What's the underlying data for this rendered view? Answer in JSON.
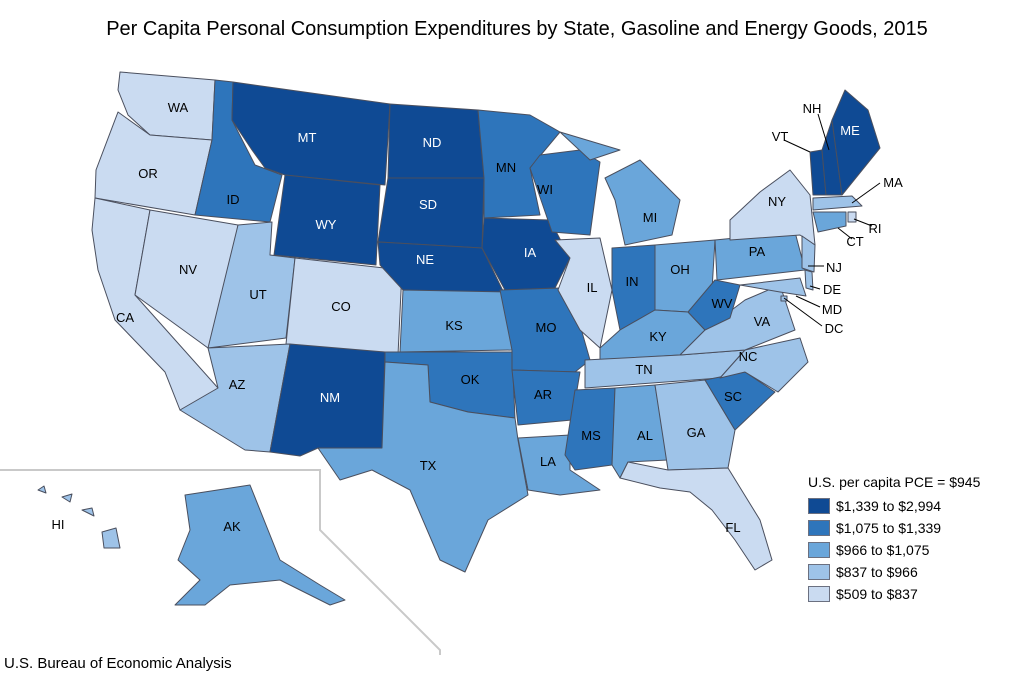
{
  "title": "Per Capita Personal Consumption Expenditures by State, Gasoline and Energy Goods, 2015",
  "source": "U.S. Bureau of Economic Analysis",
  "legend": {
    "title": "U.S. per capita PCE = $945",
    "items": [
      {
        "label": "$1,339 to $2,994",
        "color": "#0f4a94"
      },
      {
        "label": "$1,075 to $1,339",
        "color": "#2e75bb"
      },
      {
        "label": "$966 to $1,075",
        "color": "#6aa6da"
      },
      {
        "label": "$837 to $966",
        "color": "#9ec3e8"
      },
      {
        "label": "$509 to $837",
        "color": "#cadbf1"
      }
    ]
  },
  "states": [
    {
      "abbr": "WA",
      "bin": 4
    },
    {
      "abbr": "OR",
      "bin": 4
    },
    {
      "abbr": "CA",
      "bin": 4
    },
    {
      "abbr": "NV",
      "bin": 4
    },
    {
      "abbr": "ID",
      "bin": 1
    },
    {
      "abbr": "MT",
      "bin": 0
    },
    {
      "abbr": "WY",
      "bin": 0
    },
    {
      "abbr": "UT",
      "bin": 3
    },
    {
      "abbr": "CO",
      "bin": 4
    },
    {
      "abbr": "AZ",
      "bin": 3
    },
    {
      "abbr": "NM",
      "bin": 0
    },
    {
      "abbr": "ND",
      "bin": 0
    },
    {
      "abbr": "SD",
      "bin": 0
    },
    {
      "abbr": "NE",
      "bin": 0
    },
    {
      "abbr": "KS",
      "bin": 2
    },
    {
      "abbr": "OK",
      "bin": 1
    },
    {
      "abbr": "TX",
      "bin": 2
    },
    {
      "abbr": "MN",
      "bin": 1
    },
    {
      "abbr": "IA",
      "bin": 0
    },
    {
      "abbr": "MO",
      "bin": 1
    },
    {
      "abbr": "AR",
      "bin": 1
    },
    {
      "abbr": "LA",
      "bin": 2
    },
    {
      "abbr": "WI",
      "bin": 1
    },
    {
      "abbr": "IL",
      "bin": 4
    },
    {
      "abbr": "MI",
      "bin": 2
    },
    {
      "abbr": "IN",
      "bin": 1
    },
    {
      "abbr": "OH",
      "bin": 2
    },
    {
      "abbr": "KY",
      "bin": 2
    },
    {
      "abbr": "TN",
      "bin": 3
    },
    {
      "abbr": "MS",
      "bin": 1
    },
    {
      "abbr": "AL",
      "bin": 2
    },
    {
      "abbr": "GA",
      "bin": 3
    },
    {
      "abbr": "FL",
      "bin": 4
    },
    {
      "abbr": "SC",
      "bin": 1
    },
    {
      "abbr": "NC",
      "bin": 3
    },
    {
      "abbr": "VA",
      "bin": 3
    },
    {
      "abbr": "WV",
      "bin": 1
    },
    {
      "abbr": "PA",
      "bin": 2
    },
    {
      "abbr": "NY",
      "bin": 4
    },
    {
      "abbr": "VT",
      "bin": 0
    },
    {
      "abbr": "NH",
      "bin": 0
    },
    {
      "abbr": "ME",
      "bin": 0
    },
    {
      "abbr": "MA",
      "bin": 3
    },
    {
      "abbr": "RI",
      "bin": 4
    },
    {
      "abbr": "CT",
      "bin": 2
    },
    {
      "abbr": "NJ",
      "bin": 3
    },
    {
      "abbr": "DE",
      "bin": 3
    },
    {
      "abbr": "MD",
      "bin": 3
    },
    {
      "abbr": "DC",
      "bin": 3
    },
    {
      "abbr": "AK",
      "bin": 2
    },
    {
      "abbr": "HI",
      "bin": 3
    }
  ]
}
